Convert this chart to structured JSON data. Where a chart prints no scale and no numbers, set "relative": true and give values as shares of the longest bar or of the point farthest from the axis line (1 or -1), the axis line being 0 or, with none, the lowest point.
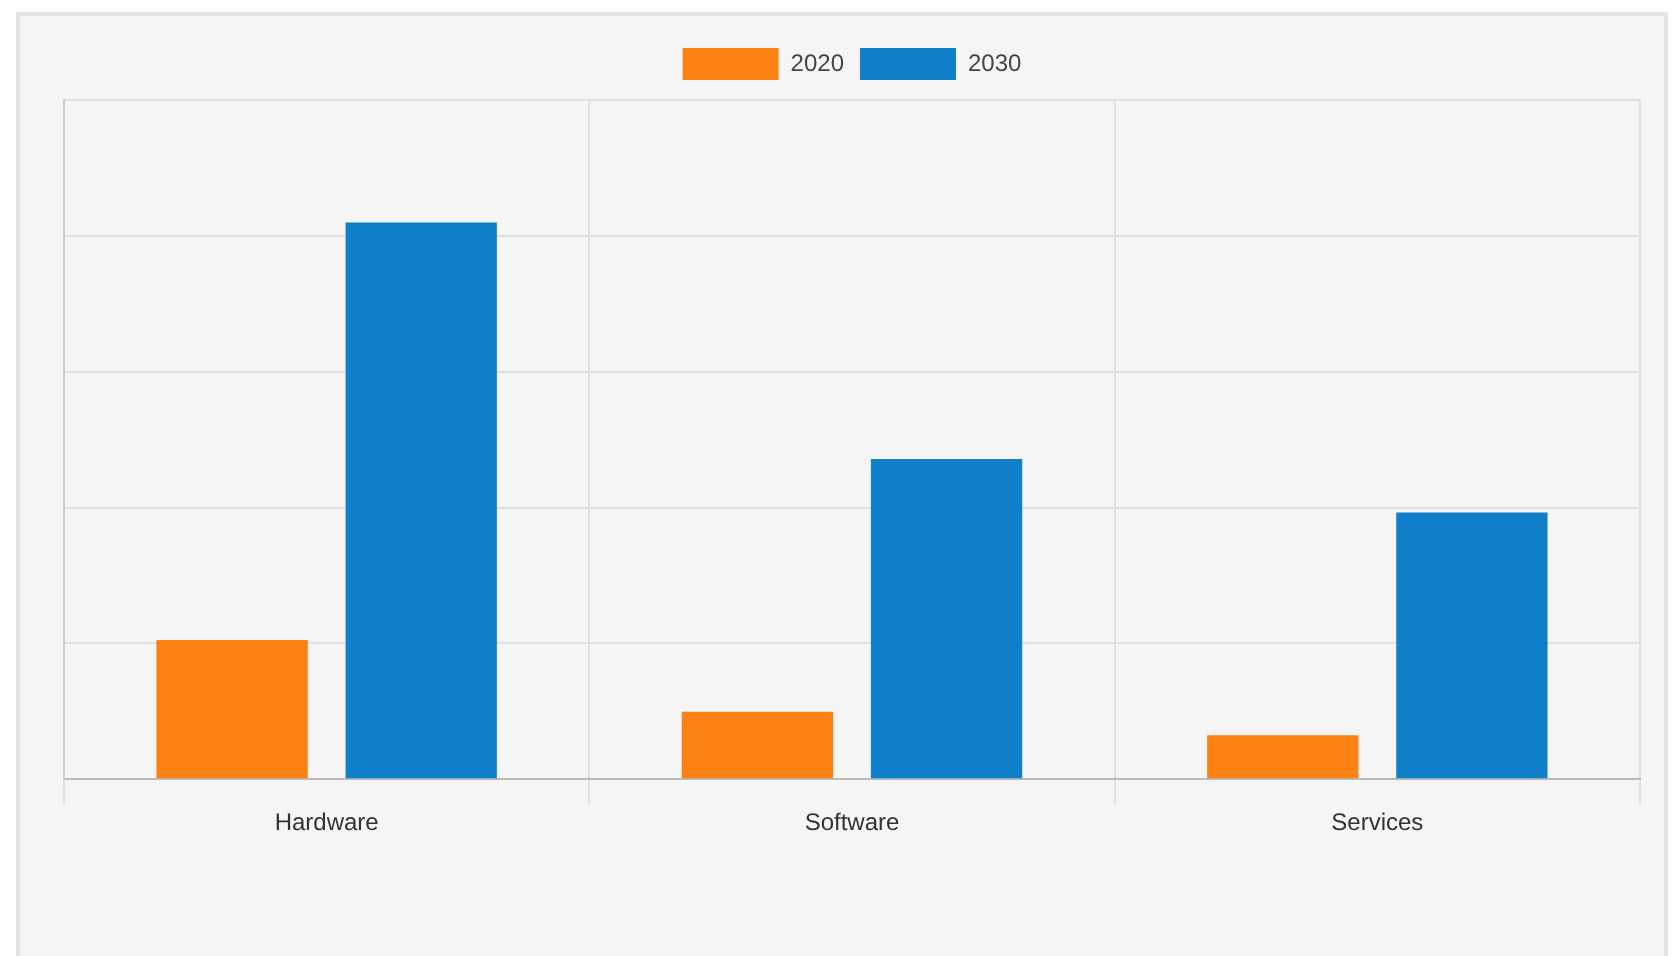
{
  "chart_data": {
    "type": "bar",
    "relative": true,
    "categories": [
      "Hardware",
      "Software",
      "Services"
    ],
    "series": [
      {
        "name": "2020",
        "color": "#fd8012",
        "values": [
          0.25,
          0.121,
          0.079
        ]
      },
      {
        "name": "2030",
        "color": "#0f7fca",
        "values": [
          1,
          0.575,
          0.479
        ]
      }
    ],
    "grid": true,
    "legend": "top"
  }
}
